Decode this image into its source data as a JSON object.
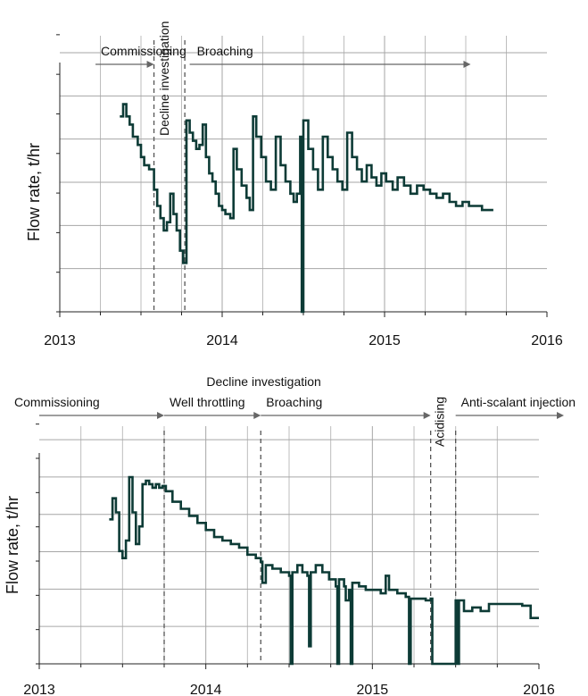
{
  "chart_data": [
    {
      "type": "line",
      "ylabel": "Flow rate, t/hr",
      "xlim": [
        2013,
        2016
      ],
      "x_ticks": [
        "2013",
        "2014",
        "2015",
        "2016"
      ],
      "grid": true,
      "events": [
        2013.58,
        2013.77
      ],
      "annotations": [
        {
          "text": "Commissioning",
          "arrow_from": 2013.22,
          "arrow_to": 2013.58
        },
        {
          "text": "Decline investigation",
          "rotated": true,
          "at": 2013.67
        },
        {
          "text": "Broaching",
          "arrow_from": 2013.8,
          "arrow_to": 2015.53
        }
      ],
      "ylim": [
        0,
        7
      ],
      "series": [
        {
          "values": [
            [
              2013.37,
              4.8
            ],
            [
              2013.39,
              5.1
            ],
            [
              2013.41,
              4.8
            ],
            [
              2013.43,
              4.6
            ],
            [
              2013.45,
              4.3
            ],
            [
              2013.48,
              4.1
            ],
            [
              2013.5,
              3.8
            ],
            [
              2013.52,
              3.6
            ],
            [
              2013.55,
              3.5
            ],
            [
              2013.58,
              3.0
            ],
            [
              2013.6,
              2.6
            ],
            [
              2013.62,
              2.3
            ],
            [
              2013.64,
              2.0
            ],
            [
              2013.66,
              2.2
            ],
            [
              2013.68,
              2.9
            ],
            [
              2013.7,
              2.4
            ],
            [
              2013.72,
              2.0
            ],
            [
              2013.74,
              1.5
            ],
            [
              2013.76,
              1.2
            ],
            [
              2013.78,
              4.7
            ],
            [
              2013.8,
              4.4
            ],
            [
              2013.82,
              4.2
            ],
            [
              2013.84,
              4.0
            ],
            [
              2013.86,
              4.1
            ],
            [
              2013.88,
              4.6
            ],
            [
              2013.9,
              3.8
            ],
            [
              2013.92,
              3.4
            ],
            [
              2013.94,
              3.2
            ],
            [
              2013.96,
              2.9
            ],
            [
              2013.98,
              2.6
            ],
            [
              2014.0,
              2.5
            ],
            [
              2014.02,
              2.4
            ],
            [
              2014.05,
              2.3
            ],
            [
              2014.07,
              4.0
            ],
            [
              2014.09,
              3.5
            ],
            [
              2014.12,
              3.1
            ],
            [
              2014.15,
              2.8
            ],
            [
              2014.17,
              2.5
            ],
            [
              2014.19,
              4.8
            ],
            [
              2014.21,
              4.3
            ],
            [
              2014.24,
              3.8
            ],
            [
              2014.27,
              3.2
            ],
            [
              2014.3,
              3.0
            ],
            [
              2014.33,
              4.3
            ],
            [
              2014.36,
              3.6
            ],
            [
              2014.39,
              3.2
            ],
            [
              2014.42,
              2.9
            ],
            [
              2014.44,
              2.7
            ],
            [
              2014.46,
              2.9
            ],
            [
              2014.48,
              4.3
            ],
            [
              2014.49,
              0.0
            ],
            [
              2014.5,
              4.7
            ],
            [
              2014.53,
              4.0
            ],
            [
              2014.56,
              3.5
            ],
            [
              2014.59,
              3.0
            ],
            [
              2014.62,
              4.3
            ],
            [
              2014.65,
              3.8
            ],
            [
              2014.68,
              3.5
            ],
            [
              2014.71,
              3.2
            ],
            [
              2014.74,
              3.0
            ],
            [
              2014.77,
              4.4
            ],
            [
              2014.8,
              3.8
            ],
            [
              2014.83,
              3.5
            ],
            [
              2014.86,
              3.2
            ],
            [
              2014.89,
              3.6
            ],
            [
              2014.92,
              3.3
            ],
            [
              2014.95,
              3.1
            ],
            [
              2014.98,
              3.4
            ],
            [
              2015.01,
              3.2
            ],
            [
              2015.05,
              3.0
            ],
            [
              2015.08,
              3.3
            ],
            [
              2015.12,
              3.1
            ],
            [
              2015.16,
              2.9
            ],
            [
              2015.2,
              3.1
            ],
            [
              2015.24,
              3.0
            ],
            [
              2015.28,
              2.9
            ],
            [
              2015.32,
              2.8
            ],
            [
              2015.36,
              2.9
            ],
            [
              2015.4,
              2.7
            ],
            [
              2015.44,
              2.6
            ],
            [
              2015.48,
              2.7
            ],
            [
              2015.52,
              2.6
            ],
            [
              2015.56,
              2.6
            ],
            [
              2015.6,
              2.5
            ],
            [
              2015.64,
              2.5
            ],
            [
              2015.67,
              2.5
            ]
          ]
        }
      ]
    },
    {
      "type": "line",
      "ylabel": "Flow rate, t/hr",
      "xlim": [
        2013,
        2016
      ],
      "x_ticks": [
        "2013",
        "2014",
        "2015",
        "2016"
      ],
      "grid": true,
      "events": [
        2013.75,
        2014.33,
        2015.35,
        2015.5
      ],
      "annotations": [
        {
          "text": "Commissioning",
          "arrow_from": 2013.0,
          "arrow_to": 2013.75
        },
        {
          "text": "Decline investigation",
          "at": 2014.02
        },
        {
          "text": "Well throttling",
          "arrow_from": 2013.75,
          "arrow_to": 2014.33
        },
        {
          "text": "Broaching",
          "arrow_from": 2014.33,
          "arrow_to": 2015.35
        },
        {
          "text": "Acidising",
          "rotated": true,
          "at": 2015.43
        },
        {
          "text": "Anti-scalant injection",
          "arrow_from": 2015.5,
          "arrow_to": 2016.15
        }
      ],
      "ylim": [
        0,
        7
      ],
      "series": [
        {
          "values": [
            [
              2013.42,
              4.1
            ],
            [
              2013.44,
              4.7
            ],
            [
              2013.46,
              4.3
            ],
            [
              2013.48,
              3.2
            ],
            [
              2013.5,
              3.0
            ],
            [
              2013.52,
              3.5
            ],
            [
              2013.54,
              5.3
            ],
            [
              2013.56,
              4.3
            ],
            [
              2013.58,
              3.4
            ],
            [
              2013.6,
              3.9
            ],
            [
              2013.62,
              5.1
            ],
            [
              2013.64,
              5.2
            ],
            [
              2013.66,
              5.1
            ],
            [
              2013.68,
              5.0
            ],
            [
              2013.7,
              5.1
            ],
            [
              2013.72,
              5.0
            ],
            [
              2013.74,
              5.05
            ],
            [
              2013.76,
              4.9
            ],
            [
              2013.8,
              4.6
            ],
            [
              2013.85,
              4.4
            ],
            [
              2013.9,
              4.2
            ],
            [
              2013.95,
              4.0
            ],
            [
              2014.0,
              3.8
            ],
            [
              2014.05,
              3.6
            ],
            [
              2014.1,
              3.5
            ],
            [
              2014.15,
              3.4
            ],
            [
              2014.2,
              3.3
            ],
            [
              2014.25,
              3.1
            ],
            [
              2014.3,
              3.0
            ],
            [
              2014.33,
              2.9
            ],
            [
              2014.34,
              2.3
            ],
            [
              2014.36,
              2.8
            ],
            [
              2014.4,
              2.7
            ],
            [
              2014.45,
              2.6
            ],
            [
              2014.5,
              2.5
            ],
            [
              2014.51,
              0.0
            ],
            [
              2014.52,
              2.6
            ],
            [
              2014.55,
              2.8
            ],
            [
              2014.58,
              2.6
            ],
            [
              2014.61,
              2.5
            ],
            [
              2014.62,
              0.5
            ],
            [
              2014.63,
              2.6
            ],
            [
              2014.66,
              2.8
            ],
            [
              2014.7,
              2.6
            ],
            [
              2014.74,
              2.4
            ],
            [
              2014.78,
              2.2
            ],
            [
              2014.79,
              0.0
            ],
            [
              2014.8,
              2.4
            ],
            [
              2014.83,
              2.2
            ],
            [
              2014.84,
              1.8
            ],
            [
              2014.86,
              2.1
            ],
            [
              2014.87,
              0.0
            ],
            [
              2014.88,
              2.3
            ],
            [
              2014.92,
              2.2
            ],
            [
              2014.96,
              2.1
            ],
            [
              2015.0,
              2.1
            ],
            [
              2015.05,
              2.0
            ],
            [
              2015.08,
              2.5
            ],
            [
              2015.1,
              2.1
            ],
            [
              2015.15,
              2.0
            ],
            [
              2015.2,
              1.9
            ],
            [
              2015.22,
              0.0
            ],
            [
              2015.23,
              1.85
            ],
            [
              2015.28,
              1.85
            ],
            [
              2015.32,
              1.8
            ],
            [
              2015.35,
              1.85
            ],
            [
              2015.36,
              0.0
            ],
            [
              2015.49,
              0.0
            ],
            [
              2015.5,
              1.8
            ],
            [
              2015.51,
              0.0
            ],
            [
              2015.52,
              1.8
            ],
            [
              2015.55,
              1.5
            ],
            [
              2015.6,
              1.6
            ],
            [
              2015.65,
              1.5
            ],
            [
              2015.7,
              1.7
            ],
            [
              2015.8,
              1.7
            ],
            [
              2015.9,
              1.65
            ],
            [
              2015.95,
              1.3
            ],
            [
              2016.0,
              1.3
            ]
          ]
        }
      ]
    }
  ]
}
